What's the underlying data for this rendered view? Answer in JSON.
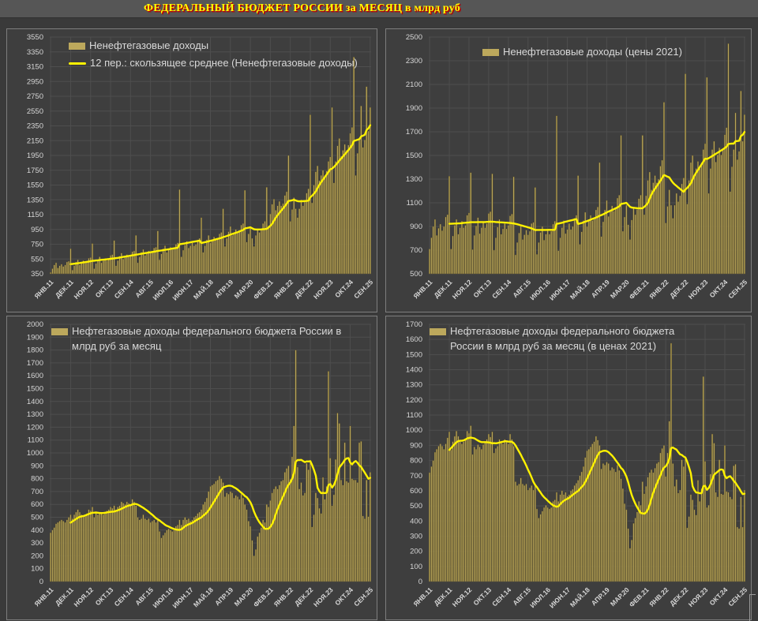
{
  "page": {
    "title": "ФЕДЕРАЛЬНЫЙ БЮДЖЕТ РОССИИ за МЕСЯЦ в млрд руб"
  },
  "colors": {
    "page_background": "#3A3A3A",
    "titlebar_background": "#565656",
    "title_text": "#FFFF00",
    "title_shadow": "#C00000",
    "panel_background": "#3E3E3E",
    "panel_border": "#7E7E7E",
    "bar": "#B9A558",
    "bar_edge": "#554B26",
    "ma_line": "#FFF200",
    "grid": "#4E4E4E",
    "axis_text": "#D6D6D6",
    "legend_text": "#D9D9D9"
  },
  "x_ticks": [
    "ЯНВ.11",
    "ДЕК.11",
    "НОЯ.12",
    "ОКТ.13",
    "СЕН.14",
    "АВГ.15",
    "ИЮЛ.16",
    "ИЮН.17",
    "МАЙ.18",
    "АПР.19",
    "МАР.20",
    "ФЕВ.21",
    "ЯНВ.22",
    "ДЕК.22",
    "НОЯ.23",
    "ОКТ.24",
    "СЕН.25"
  ],
  "x_tick_interval_months": 11,
  "chart_data": [
    {
      "type": "bar",
      "title": "Ненефтегазовые доходы",
      "legend": [
        "Ненефтегазовые доходы",
        "12 пер.: скользящее среднее (Ненефтегазовые доходы)"
      ],
      "ylim": [
        350,
        3550
      ],
      "y_step": 200,
      "ma_window": 12,
      "x_range": "ЯНВ.11 — СЕН.25, помесячно",
      "values": [
        370,
        420,
        470,
        500,
        430,
        460,
        480,
        450,
        470,
        510,
        520,
        690,
        400,
        460,
        510,
        540,
        470,
        500,
        530,
        500,
        510,
        560,
        570,
        760,
        420,
        490,
        540,
        580,
        500,
        530,
        560,
        530,
        550,
        600,
        610,
        800,
        460,
        530,
        590,
        630,
        550,
        580,
        610,
        580,
        600,
        650,
        660,
        870,
        500,
        580,
        640,
        680,
        600,
        630,
        660,
        630,
        650,
        700,
        710,
        930,
        540,
        620,
        690,
        730,
        640,
        680,
        710,
        680,
        700,
        750,
        770,
        1490,
        580,
        670,
        740,
        790,
        700,
        730,
        770,
        730,
        750,
        810,
        830,
        1110,
        640,
        730,
        810,
        870,
        770,
        810,
        850,
        810,
        830,
        890,
        910,
        1230,
        720,
        830,
        920,
        990,
        870,
        910,
        950,
        910,
        940,
        1010,
        1030,
        1480,
        780,
        890,
        980,
        830,
        720,
        870,
        960,
        910,
        950,
        1030,
        1060,
        1520,
        1000,
        1160,
        1290,
        1360,
        1210,
        1270,
        1330,
        1270,
        1300,
        1410,
        1460,
        1950,
        1060,
        1220,
        1380,
        1230,
        1110,
        1230,
        1350,
        1270,
        1330,
        1440,
        1500,
        2500,
        1310,
        1550,
        1730,
        1810,
        1610,
        1680,
        1750,
        1680,
        1740,
        1870,
        1930,
        2600,
        1580,
        1870,
        2080,
        2180,
        1940,
        2020,
        2100,
        2020,
        2090,
        2250,
        2330,
        3280,
        1680,
        1980,
        2180,
        2620,
        2060,
        2160,
        2880,
        2280,
        2600
      ]
    },
    {
      "type": "bar",
      "title": "Ненефтегазовые доходы (цены 2021)",
      "legend": [
        "Ненефтегазовые доходы (цены 2021)"
      ],
      "ylim": [
        500,
        2500
      ],
      "y_step": 200,
      "ma_window": 12,
      "x_range": "ЯНВ.11 — СЕН.25, помесячно",
      "values": [
        710,
        805,
        900,
        960,
        825,
        885,
        920,
        865,
        900,
        980,
        1000,
        1325,
        710,
        820,
        910,
        960,
        835,
        890,
        945,
        890,
        910,
        995,
        1015,
        1355,
        705,
        825,
        905,
        975,
        840,
        890,
        940,
        890,
        925,
        1010,
        1025,
        1345,
        700,
        805,
        895,
        960,
        835,
        880,
        925,
        880,
        910,
        990,
        1005,
        1320,
        660,
        765,
        845,
        900,
        790,
        830,
        870,
        830,
        860,
        925,
        935,
        1230,
        665,
        765,
        850,
        900,
        785,
        835,
        875,
        835,
        860,
        920,
        945,
        1835,
        695,
        805,
        890,
        950,
        840,
        875,
        925,
        875,
        900,
        970,
        995,
        1330,
        750,
        855,
        950,
        1020,
        900,
        950,
        995,
        950,
        970,
        1040,
        1065,
        1440,
        815,
        940,
        1040,
        1120,
        985,
        1030,
        1075,
        1030,
        1060,
        1140,
        1165,
        1670,
        860,
        980,
        1080,
        915,
        790,
        955,
        1055,
        1000,
        1045,
        1135,
        1165,
        1670,
        1000,
        1160,
        1290,
        1360,
        1210,
        1270,
        1330,
        1270,
        1300,
        1410,
        1460,
        1950,
        930,
        1070,
        1210,
        1080,
        970,
        1080,
        1180,
        1110,
        1160,
        1260,
        1310,
        2190,
        1090,
        1290,
        1440,
        1500,
        1340,
        1390,
        1450,
        1390,
        1440,
        1550,
        1600,
        2160,
        1180,
        1390,
        1550,
        1620,
        1445,
        1505,
        1565,
        1505,
        1555,
        1675,
        1735,
        2445,
        1195,
        1405,
        1550,
        1860,
        1465,
        1535,
        2045,
        1620,
        1845
      ]
    },
    {
      "type": "bar",
      "title": "Нефтегазовые доходы федерального бюджета России в млрд руб за месяц",
      "legend": [
        "Нефтегазовые доходы федерального бюджета России в млрд руб за месяц"
      ],
      "ylim": [
        0,
        2000
      ],
      "y_step": 100,
      "ma_window": 12,
      "x_range": "ЯНВ.11 — СЕН.25, помесячно",
      "values": [
        380,
        400,
        420,
        450,
        460,
        470,
        480,
        470,
        460,
        480,
        500,
        520,
        490,
        520,
        540,
        560,
        540,
        520,
        510,
        520,
        530,
        560,
        550,
        580,
        500,
        530,
        520,
        540,
        530,
        520,
        540,
        550,
        560,
        580,
        570,
        590,
        560,
        580,
        590,
        620,
        610,
        600,
        620,
        610,
        600,
        640,
        620,
        590,
        500,
        480,
        490,
        520,
        490,
        480,
        490,
        460,
        470,
        480,
        460,
        490,
        390,
        340,
        360,
        380,
        400,
        410,
        400,
        390,
        400,
        430,
        440,
        480,
        440,
        480,
        500,
        480,
        490,
        470,
        480,
        500,
        510,
        530,
        540,
        560,
        600,
        620,
        650,
        700,
        740,
        750,
        760,
        780,
        790,
        820,
        800,
        770,
        660,
        690,
        680,
        700,
        690,
        650,
        670,
        660,
        640,
        680,
        650,
        600,
        560,
        470,
        430,
        320,
        200,
        250,
        350,
        380,
        420,
        480,
        460,
        600,
        580,
        630,
        690,
        720,
        740,
        720,
        750,
        780,
        790,
        850,
        880,
        900,
        795,
        970,
        1210,
        1800,
        890,
        720,
        770,
        670,
        690,
        920,
        870,
        930,
        425,
        520,
        690,
        650,
        570,
        530,
        810,
        640,
        740,
        1635,
        960,
        590,
        675,
        950,
        1310,
        1230,
        790,
        750,
        1080,
        780,
        770,
        1210,
        800,
        790,
        790,
        770,
        1080,
        1090,
        510,
        490,
        790,
        505,
        850
      ]
    },
    {
      "type": "bar",
      "title": "Нефтегазовые доходы федерального бюджета России в млрд руб за месяц (в ценах 2021)",
      "legend": [
        "Нефтегазовые доходы федерального бюджета России в млрд руб за месяц (в ценах 2021)"
      ],
      "ylim": [
        0,
        1700
      ],
      "y_step": 100,
      "ma_window": 12,
      "x_range": "ЯНВ.11 — СЕН.25, помесячно",
      "values": [
        720,
        760,
        800,
        855,
        875,
        895,
        910,
        895,
        875,
        910,
        950,
        990,
        870,
        925,
        960,
        995,
        960,
        925,
        910,
        925,
        945,
        995,
        980,
        1030,
        840,
        890,
        875,
        905,
        890,
        875,
        905,
        925,
        940,
        975,
        955,
        990,
        850,
        880,
        895,
        940,
        925,
        910,
        940,
        925,
        910,
        975,
        940,
        895,
        660,
        635,
        645,
        685,
        645,
        635,
        645,
        605,
        620,
        635,
        605,
        645,
        480,
        420,
        445,
        465,
        490,
        505,
        490,
        480,
        490,
        530,
        540,
        590,
        530,
        575,
        600,
        575,
        590,
        565,
        575,
        600,
        610,
        635,
        650,
        670,
        700,
        725,
        760,
        820,
        865,
        875,
        890,
        910,
        925,
        960,
        935,
        900,
        745,
        780,
        770,
        790,
        780,
        735,
        755,
        745,
        725,
        770,
        735,
        680,
        615,
        515,
        475,
        350,
        220,
        275,
        385,
        420,
        460,
        530,
        505,
        660,
        580,
        630,
        690,
        720,
        740,
        720,
        750,
        780,
        790,
        850,
        880,
        900,
        695,
        850,
        1060,
        1575,
        780,
        630,
        675,
        585,
        605,
        805,
        760,
        815,
        355,
        430,
        575,
        540,
        475,
        440,
        670,
        530,
        615,
        1355,
        795,
        490,
        505,
        710,
        975,
        915,
        590,
        560,
        805,
        580,
        575,
        900,
        595,
        590,
        560,
        545,
        765,
        775,
        360,
        350,
        560,
        360,
        605
      ]
    }
  ]
}
